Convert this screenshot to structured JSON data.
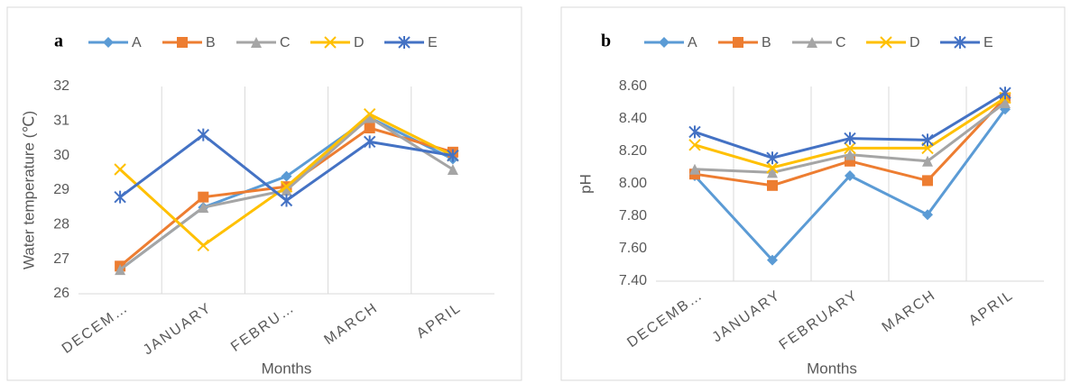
{
  "chart_data": [
    {
      "type": "line",
      "panel_label": "a",
      "ylabel": "Water temperature (℃)",
      "xlabel": "Months",
      "categories": [
        "DECEM…",
        "JANUARY",
        "FEBRU…",
        "MARCH",
        "APRIL"
      ],
      "ylim": [
        26,
        32
      ],
      "yticks": [
        26,
        27,
        28,
        29,
        30,
        31,
        32
      ],
      "grid": true,
      "series": [
        {
          "name": "A",
          "color": "#5b9bd5",
          "marker": "diamond",
          "values": [
            26.7,
            28.5,
            29.4,
            31.1,
            29.9
          ]
        },
        {
          "name": "B",
          "color": "#ed7d31",
          "marker": "square",
          "values": [
            26.8,
            28.8,
            29.1,
            30.8,
            30.1
          ]
        },
        {
          "name": "C",
          "color": "#a5a5a5",
          "marker": "triangle",
          "values": [
            26.7,
            28.5,
            29.0,
            31.1,
            29.6
          ]
        },
        {
          "name": "D",
          "color": "#ffc000",
          "marker": "x",
          "values": [
            29.6,
            27.4,
            29.1,
            31.2,
            30.0
          ]
        },
        {
          "name": "E",
          "color": "#4472c4",
          "marker": "star",
          "values": [
            28.8,
            30.6,
            28.7,
            30.4,
            30.0
          ]
        }
      ]
    },
    {
      "type": "line",
      "panel_label": "b",
      "ylabel": "pH",
      "xlabel": "Months",
      "categories": [
        "DECEMB…",
        "JANUARY",
        "FEBRUARY",
        "MARCH",
        "APRIL"
      ],
      "ylim": [
        7.4,
        8.6
      ],
      "yticks": [
        {
          "value": 7.4,
          "label": "7.40"
        },
        {
          "value": 7.6,
          "label": "7.60"
        },
        {
          "value": 7.8,
          "label": "7.80"
        },
        {
          "value": 8.0,
          "label": "8.00"
        },
        {
          "value": 8.2,
          "label": "8.20"
        },
        {
          "value": 8.4,
          "label": "8.40"
        },
        {
          "value": 8.6,
          "label": "8.60"
        }
      ],
      "grid": true,
      "series": [
        {
          "name": "A",
          "color": "#5b9bd5",
          "marker": "diamond",
          "values": [
            8.05,
            7.53,
            8.05,
            7.81,
            8.46
          ]
        },
        {
          "name": "B",
          "color": "#ed7d31",
          "marker": "square",
          "values": [
            8.06,
            7.99,
            8.14,
            8.02,
            8.53
          ]
        },
        {
          "name": "C",
          "color": "#a5a5a5",
          "marker": "triangle",
          "values": [
            8.09,
            8.07,
            8.18,
            8.14,
            8.5
          ]
        },
        {
          "name": "D",
          "color": "#ffc000",
          "marker": "x",
          "values": [
            8.24,
            8.1,
            8.22,
            8.22,
            8.53
          ]
        },
        {
          "name": "E",
          "color": "#4472c4",
          "marker": "star",
          "values": [
            8.32,
            8.16,
            8.28,
            8.27,
            8.56
          ]
        }
      ]
    }
  ]
}
